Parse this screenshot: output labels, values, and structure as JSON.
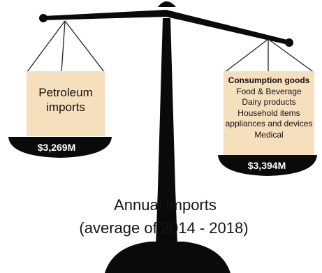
{
  "left_pan": {
    "lines": [
      "Petroleum",
      "imports"
    ],
    "amount": "$3,269M"
  },
  "right_pan": {
    "heading": "Consumption goods",
    "items": [
      "Food & Beverage",
      "Dairy products",
      "Household items",
      "appliances and devices",
      "Medical"
    ],
    "amount": "$3,394M"
  },
  "caption": {
    "title": "Annual imports",
    "subtitle": "(average of 2014 -  2018)"
  },
  "colors": {
    "scale": "#0a0a0a",
    "box_fill": "#f6dfbd",
    "text": "#111111",
    "amount_text": "#ffffff"
  }
}
